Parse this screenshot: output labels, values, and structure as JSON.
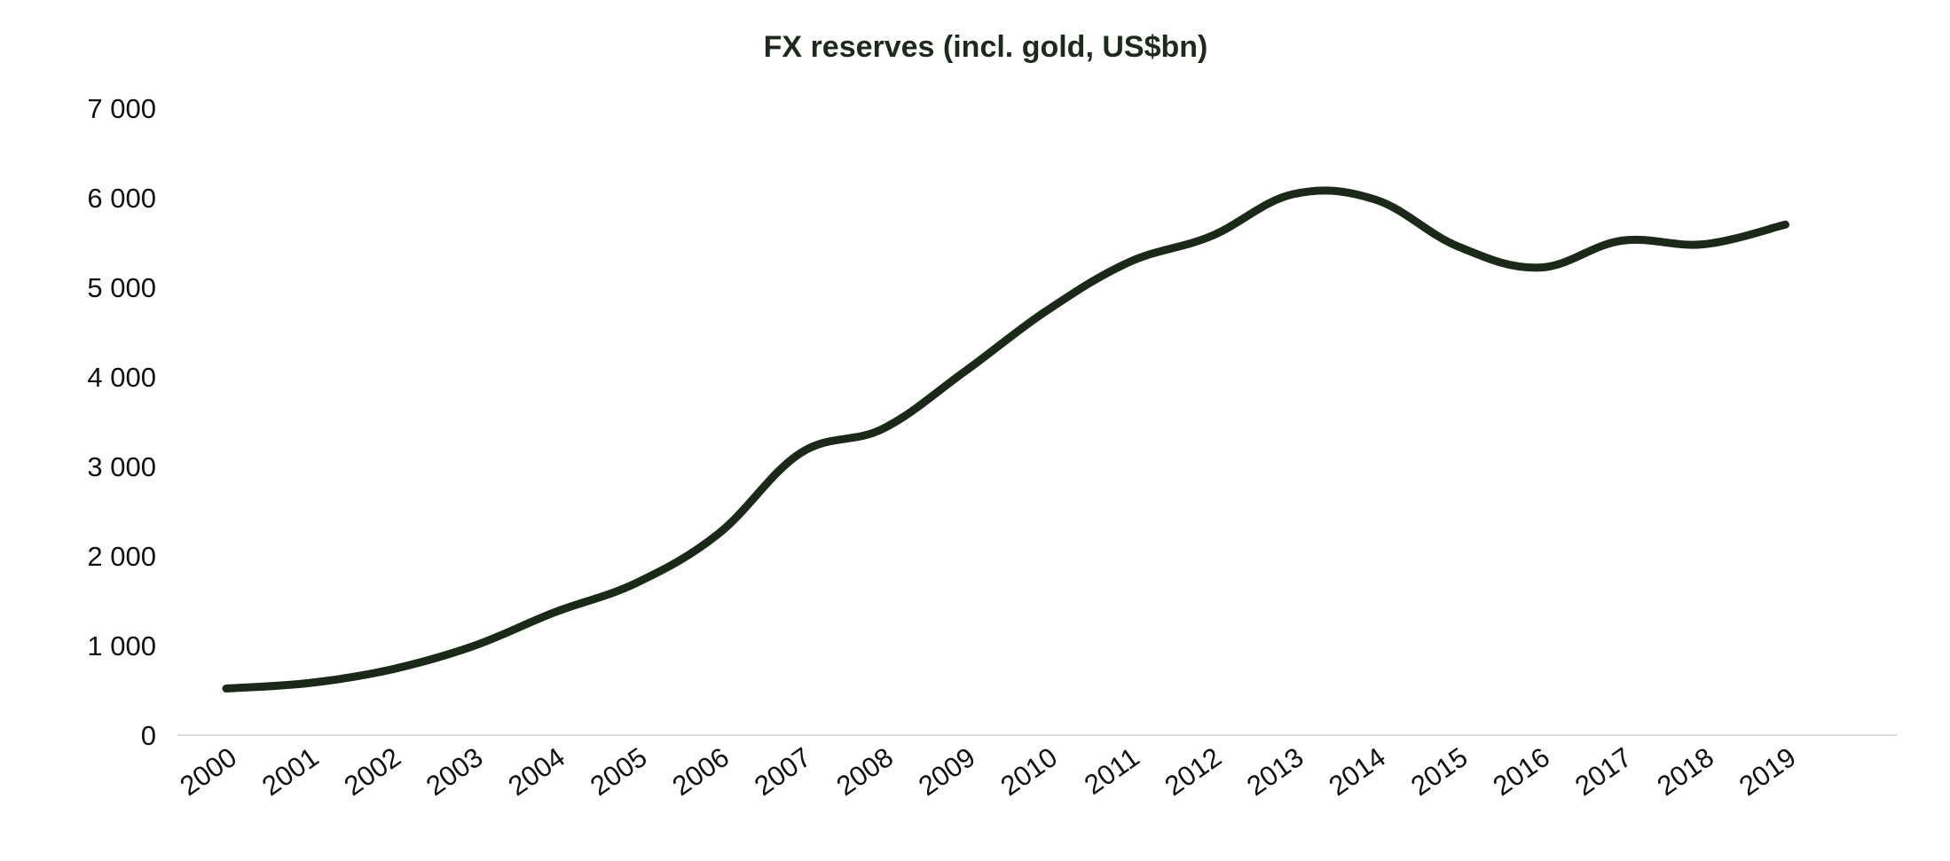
{
  "chart_data": {
    "type": "line",
    "title": "FX reserves (incl. gold, US$bn)",
    "xlabel": "",
    "ylabel": "",
    "categories": [
      "2000",
      "2001",
      "2002",
      "2003",
      "2004",
      "2005",
      "2006",
      "2007",
      "2008",
      "2009",
      "2010",
      "2011",
      "2012",
      "2013",
      "2014",
      "2015",
      "2016",
      "2017",
      "2018",
      "2019"
    ],
    "series": [
      {
        "values": [
          520,
          580,
          730,
          990,
          1370,
          1700,
          2250,
          3150,
          3420,
          4060,
          4740,
          5280,
          5570,
          6040,
          5980,
          5460,
          5220,
          5520,
          5480,
          5700
        ],
        "color": "#1b2a18"
      }
    ],
    "ylim": [
      0,
      7000
    ],
    "yticks": [
      0,
      1000,
      2000,
      3000,
      4000,
      5000,
      6000,
      7000
    ],
    "ytick_labels": [
      "0",
      "1 000",
      "2 000",
      "3 000",
      "4 000",
      "5 000",
      "6 000",
      "7 000"
    ],
    "grid": false,
    "legend": "none",
    "axis_color": "#d9d9d9"
  }
}
